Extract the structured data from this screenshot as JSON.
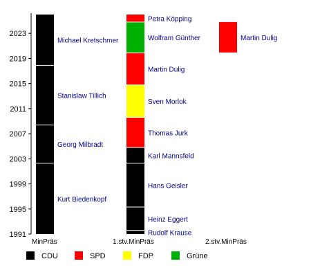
{
  "chart_data": {
    "type": "bar",
    "chart_kind": "timeline",
    "columns": [
      "MinPräs",
      "1.stv.MinPräs",
      "2.stv.MinPräs"
    ],
    "y_ticks": [
      1991,
      1995,
      1999,
      2003,
      2007,
      2011,
      2015,
      2019,
      2023
    ],
    "ylim": [
      1991,
      2026
    ],
    "party_colors": {
      "CDU": "#000000",
      "SPD": "#ff0000",
      "FDP": "#ffff00",
      "Grüne": "#00b000"
    },
    "legend": [
      "CDU",
      "SPD",
      "FDP",
      "Grüne"
    ],
    "legend_position": "bottom",
    "segments": [
      {
        "column": "MinPräs",
        "name": "Kurt Biedenkopf",
        "party": "CDU",
        "start": 1991.0,
        "end": 2002.3
      },
      {
        "column": "MinPräs",
        "name": "Georg Milbradt",
        "party": "CDU",
        "start": 2002.3,
        "end": 2008.4
      },
      {
        "column": "MinPräs",
        "name": "Stanislaw Tillich",
        "party": "CDU",
        "start": 2008.4,
        "end": 2017.9
      },
      {
        "column": "MinPräs",
        "name": "Michael Kretschmer",
        "party": "CDU",
        "start": 2017.9,
        "end": 2026.0
      },
      {
        "column": "1.stv.MinPräs",
        "name": "Rudolf Krause",
        "party": "CDU",
        "start": 1991.0,
        "end": 1991.6
      },
      {
        "column": "1.stv.MinPräs",
        "name": "Heinz Eggert",
        "party": "CDU",
        "start": 1991.6,
        "end": 1995.3
      },
      {
        "column": "1.stv.MinPräs",
        "name": "Hans Geisler",
        "party": "CDU",
        "start": 1995.3,
        "end": 2002.3
      },
      {
        "column": "1.stv.MinPräs",
        "name": "Karl Mannsfeld",
        "party": "CDU",
        "start": 2002.3,
        "end": 2004.8
      },
      {
        "column": "1.stv.MinPräs",
        "name": "Thomas Jurk",
        "party": "SPD",
        "start": 2004.8,
        "end": 2009.6
      },
      {
        "column": "1.stv.MinPräs",
        "name": "Sven Morlok",
        "party": "FDP",
        "start": 2009.6,
        "end": 2014.8
      },
      {
        "column": "1.stv.MinPräs",
        "name": "Martin Dulig",
        "party": "SPD",
        "start": 2014.8,
        "end": 2019.9
      },
      {
        "column": "1.stv.MinPräs",
        "name": "Wolfram Günther",
        "party": "Grüne",
        "start": 2019.9,
        "end": 2024.8
      },
      {
        "column": "1.stv.MinPräs",
        "name": "Petra Köpping",
        "party": "SPD",
        "start": 2024.8,
        "end": 2026.0
      },
      {
        "column": "2.stv.MinPräs",
        "name": "Martin Dulig",
        "party": "SPD",
        "start": 2019.9,
        "end": 2024.8
      }
    ]
  }
}
